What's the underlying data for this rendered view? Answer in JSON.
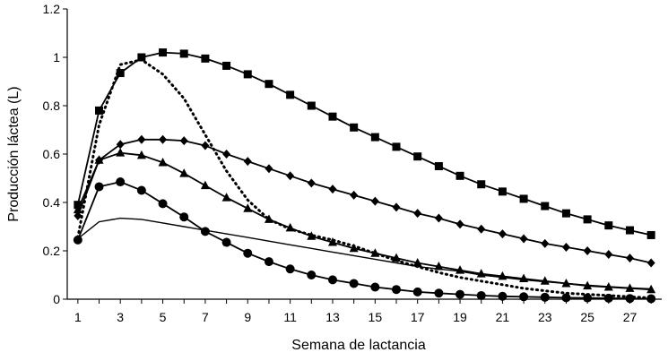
{
  "chart_data": {
    "type": "line",
    "title": "",
    "xlabel": "Semana de lactancia",
    "ylabel": "Producción láctea (L)",
    "xlim": [
      0.5,
      28.5
    ],
    "ylim": [
      0,
      1.2
    ],
    "x_ticks": [
      1,
      3,
      5,
      7,
      9,
      11,
      13,
      15,
      17,
      19,
      21,
      23,
      25,
      27
    ],
    "x_tick_labels": [
      "1",
      "3",
      "5",
      "7",
      "9",
      "11",
      "13",
      "15",
      "17",
      "19",
      "21",
      "23",
      "25",
      "27"
    ],
    "y_ticks": [
      0,
      0.2,
      0.4,
      0.6,
      0.8,
      1,
      1.2
    ],
    "y_tick_labels": [
      "0",
      "0.2",
      "0.4",
      "0.6",
      "0.8",
      "1",
      "1.2"
    ],
    "grid": false,
    "legend": "none",
    "x": [
      1,
      2,
      3,
      4,
      5,
      6,
      7,
      8,
      9,
      10,
      11,
      12,
      13,
      14,
      15,
      16,
      17,
      18,
      19,
      20,
      21,
      22,
      23,
      24,
      25,
      26,
      27,
      28
    ],
    "series": [
      {
        "name": "squares",
        "marker": "square",
        "line_style": "solid",
        "values": [
          0.39,
          0.78,
          0.935,
          1.0,
          1.02,
          1.015,
          0.995,
          0.965,
          0.93,
          0.89,
          0.845,
          0.8,
          0.755,
          0.71,
          0.67,
          0.63,
          0.59,
          0.55,
          0.51,
          0.475,
          0.445,
          0.415,
          0.385,
          0.355,
          0.33,
          0.305,
          0.285,
          0.265
        ]
      },
      {
        "name": "diamonds",
        "marker": "diamond",
        "line_style": "solid",
        "values": [
          0.345,
          0.575,
          0.64,
          0.66,
          0.66,
          0.655,
          0.635,
          0.6,
          0.57,
          0.54,
          0.51,
          0.48,
          0.455,
          0.43,
          0.405,
          0.38,
          0.355,
          0.335,
          0.31,
          0.29,
          0.27,
          0.25,
          0.23,
          0.215,
          0.2,
          0.185,
          0.17,
          0.15
        ]
      },
      {
        "name": "triangles",
        "marker": "triangle",
        "line_style": "solid",
        "values": [
          0.37,
          0.575,
          0.605,
          0.595,
          0.565,
          0.52,
          0.47,
          0.42,
          0.375,
          0.33,
          0.295,
          0.26,
          0.235,
          0.21,
          0.19,
          0.17,
          0.15,
          0.135,
          0.12,
          0.105,
          0.095,
          0.085,
          0.075,
          0.065,
          0.055,
          0.05,
          0.045,
          0.04
        ]
      },
      {
        "name": "circles",
        "marker": "circle",
        "line_style": "solid",
        "values": [
          0.245,
          0.465,
          0.485,
          0.45,
          0.395,
          0.34,
          0.28,
          0.235,
          0.19,
          0.155,
          0.125,
          0.1,
          0.08,
          0.065,
          0.05,
          0.04,
          0.03,
          0.025,
          0.02,
          0.015,
          0.012,
          0.01,
          0.008,
          0.006,
          0.005,
          0.004,
          0.003,
          0.002
        ]
      },
      {
        "name": "dotted",
        "marker": "none",
        "line_style": "dotted",
        "values": [
          0.255,
          0.72,
          0.97,
          0.99,
          0.93,
          0.83,
          0.68,
          0.53,
          0.41,
          0.33,
          0.29,
          0.265,
          0.245,
          0.22,
          0.19,
          0.16,
          0.135,
          0.11,
          0.09,
          0.075,
          0.06,
          0.045,
          0.035,
          0.025,
          0.02,
          0.015,
          0.01,
          0.005
        ]
      },
      {
        "name": "thin",
        "marker": "none",
        "line_style": "thin",
        "values": [
          0.25,
          0.32,
          0.335,
          0.33,
          0.315,
          0.3,
          0.285,
          0.27,
          0.255,
          0.24,
          0.225,
          0.21,
          0.195,
          0.18,
          0.165,
          0.15,
          0.135,
          0.125,
          0.115,
          0.1,
          0.09,
          0.08,
          0.072,
          0.065,
          0.058,
          0.052,
          0.047,
          0.043
        ]
      }
    ]
  }
}
